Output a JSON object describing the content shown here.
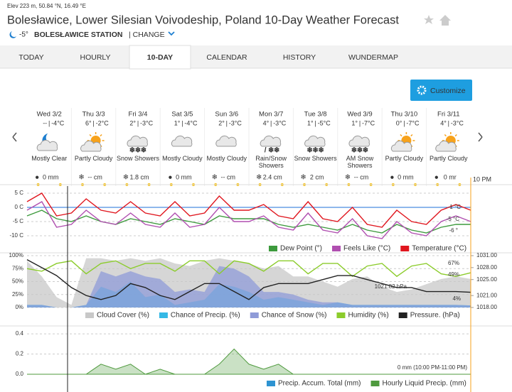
{
  "header": {
    "elev": "Elev 223 m, 50.84 °N, 16.49 °E",
    "title": "Bolesławice, Lower Silesian Voivodeship, Poland 10-Day Weather Forecast",
    "station_temp": "-5°",
    "station": "BOLESŁAWICE STATION",
    "change": "| CHANGE"
  },
  "tabs": {
    "items": [
      "TODAY",
      "HOURLY",
      "10-DAY",
      "CALENDAR",
      "HISTORY",
      "WUNDERMAP"
    ],
    "active": 2
  },
  "customize": "Customize",
  "days": [
    {
      "date": "Wed 3/2",
      "hi": "--",
      "lo": "-4°C",
      "icon": "moon",
      "condition": "Mostly Clear",
      "precip": "0 mm"
    },
    {
      "date": "Thu 3/3",
      "hi": "6°",
      "lo": "-2°C",
      "icon": "sun-cloud",
      "condition": "Partly Cloudy",
      "precip": "-- cm"
    },
    {
      "date": "Fri 3/4",
      "hi": "2°",
      "lo": "-3°C",
      "icon": "snow",
      "condition": "Snow Showers",
      "precip": "1.8 cm"
    },
    {
      "date": "Sat 3/5",
      "hi": "1°",
      "lo": "-4°C",
      "icon": "cloud",
      "condition": "Mostly Cloudy",
      "precip": "0 mm"
    },
    {
      "date": "Sun 3/6",
      "hi": "2°",
      "lo": "-3°C",
      "icon": "cloud",
      "condition": "Mostly Cloudy",
      "precip": "-- cm"
    },
    {
      "date": "Mon 3/7",
      "hi": "4°",
      "lo": "-3°C",
      "icon": "rain-snow",
      "condition": "Rain/Snow Showers",
      "precip": "2.4 cm"
    },
    {
      "date": "Tue 3/8",
      "hi": "1°",
      "lo": "-5°C",
      "icon": "snow",
      "condition": "Snow Showers",
      "precip": "2 cm"
    },
    {
      "date": "Wed 3/9",
      "hi": "1°",
      "lo": "-7°C",
      "icon": "snow",
      "condition": "AM Snow Showers",
      "precip": "-- cm"
    },
    {
      "date": "Thu 3/10",
      "hi": "0°",
      "lo": "-7°C",
      "icon": "sun-cloud",
      "condition": "Partly Cloudy",
      "precip": "0 mm"
    },
    {
      "date": "Fri 3/11",
      "hi": "4°",
      "lo": "-3°C",
      "icon": "sun-cloud",
      "condition": "Partly Cloudy",
      "precip": "0 mr"
    }
  ],
  "now_label": "10 PM",
  "chart_data": [
    {
      "type": "line",
      "ylim": [
        -12,
        7
      ],
      "yticks": [
        {
          "value": 5,
          "label": "5 C"
        },
        {
          "value": 0,
          "label": "0 C"
        },
        {
          "value": -5,
          "label": "-5 C"
        },
        {
          "value": -10,
          "label": "-10 C"
        }
      ],
      "series": [
        {
          "name": "Dew Point (°)",
          "color": "#3d9a3d",
          "kind": "line",
          "values": [
            -3,
            -1,
            -4,
            -5,
            -3,
            -5,
            -6,
            -4,
            -5,
            -6,
            -4,
            -5,
            -6,
            -3,
            -4,
            -4,
            -4,
            -6,
            -7,
            -6,
            -7,
            -8,
            -6,
            -8,
            -9,
            -6,
            -8,
            -9,
            -7,
            -6,
            -6
          ]
        },
        {
          "name": "Feels Like (°C)",
          "color": "#b04fb0",
          "kind": "line",
          "values": [
            -1,
            2,
            -7,
            -6,
            -1,
            -5,
            -6,
            -2,
            -6,
            -7,
            -2,
            -7,
            -6,
            0,
            -5,
            -5,
            -3,
            -7,
            -8,
            -2,
            -8,
            -9,
            -4,
            -10,
            -11,
            -5,
            -9,
            -10,
            -5,
            -3,
            -5
          ]
        },
        {
          "name": "Temperature (°C)",
          "color": "#e0161e",
          "kind": "line",
          "values": [
            2,
            5,
            -3,
            -2,
            3,
            -1,
            -2,
            2,
            -2,
            -3,
            2,
            -3,
            -2,
            4,
            -1,
            -1,
            1,
            -3,
            -4,
            2,
            -4,
            -5,
            0,
            -6,
            -7,
            -1,
            -5,
            -6,
            -1,
            1,
            -1
          ]
        }
      ],
      "annotations": [
        "-1 °C",
        "-5 °C",
        "-6 °"
      ]
    },
    {
      "type": "area",
      "ylim": [
        0,
        100
      ],
      "yticks": [
        {
          "value": 100,
          "label": "100%"
        },
        {
          "value": 75,
          "label": "75%"
        },
        {
          "value": 50,
          "label": "50%"
        },
        {
          "value": 25,
          "label": "25%"
        },
        {
          "value": 0,
          "label": "0%"
        }
      ],
      "y2lim": [
        1018,
        1031
      ],
      "y2ticks": [
        {
          "value": 1031,
          "label": "1031.00"
        },
        {
          "value": 1028,
          "label": "1028.00"
        },
        {
          "value": 1025,
          "label": "1025.00"
        },
        {
          "value": 1021,
          "label": "1021.00"
        },
        {
          "value": 1018,
          "label": "1018.00"
        }
      ],
      "series": [
        {
          "name": "Cloud Cover (%)",
          "color": "#c8c8c8",
          "kind": "area",
          "values": [
            90,
            60,
            20,
            5,
            95,
            95,
            90,
            95,
            90,
            95,
            85,
            80,
            90,
            95,
            90,
            85,
            75,
            80,
            60,
            60,
            50,
            40,
            55,
            60,
            40,
            30,
            35,
            45,
            55,
            60,
            55
          ]
        },
        {
          "name": "Chance of Precip. (%)",
          "color": "#35b9e6",
          "kind": "area",
          "values": [
            5,
            5,
            0,
            0,
            5,
            40,
            30,
            50,
            20,
            25,
            5,
            10,
            15,
            45,
            40,
            30,
            15,
            20,
            15,
            10,
            5,
            10,
            5,
            5,
            5,
            5,
            5,
            5,
            5,
            5,
            4
          ]
        },
        {
          "name": "Chance of Snow (%)",
          "color": "#8f9bd8",
          "kind": "area",
          "values": [
            5,
            5,
            0,
            0,
            5,
            70,
            60,
            70,
            60,
            55,
            30,
            35,
            30,
            80,
            75,
            60,
            30,
            30,
            25,
            15,
            10,
            10,
            5,
            5,
            5,
            5,
            5,
            5,
            5,
            5,
            4
          ]
        },
        {
          "name": "Humidity (%)",
          "color": "#8ccc2c",
          "kind": "line",
          "values": [
            75,
            70,
            85,
            90,
            65,
            85,
            90,
            75,
            85,
            85,
            70,
            90,
            90,
            65,
            90,
            85,
            70,
            90,
            90,
            65,
            85,
            85,
            60,
            80,
            85,
            60,
            80,
            85,
            65,
            60,
            67
          ]
        },
        {
          "name": "Pressure. (hPa)",
          "color": "#222222",
          "kind": "line",
          "axis": "y2",
          "values": [
            1030,
            1028,
            1026,
            1023,
            1021,
            1020,
            1021,
            1024,
            1023,
            1021,
            1020,
            1022,
            1024,
            1024,
            1022,
            1020,
            1023,
            1024,
            1024,
            1024,
            1025,
            1026,
            1026,
            1025,
            1024,
            1023,
            1023,
            1022,
            1022,
            1022,
            1021.82
          ]
        }
      ],
      "annotations": [
        "1021.82 hPa",
        "67%",
        "49%",
        "4%"
      ]
    },
    {
      "type": "area",
      "ylim": [
        0,
        0.45
      ],
      "yticks": [
        0.4,
        0.2,
        {
          "value": 0,
          "label": "0.0"
        }
      ],
      "series": [
        {
          "name": "Precip. Accum. Total (mm)",
          "color": "#2e93d1",
          "kind": "area",
          "values": [
            0,
            0,
            0,
            0,
            0,
            0,
            0,
            0,
            0,
            0,
            0,
            0,
            0,
            0,
            0,
            0,
            0,
            0,
            0,
            0,
            0,
            0,
            0,
            0,
            0,
            0,
            0,
            0,
            0,
            0,
            0
          ]
        },
        {
          "name": "Hourly Liquid Precip. (mm)",
          "color": "#4f9a3e",
          "kind": "area",
          "values": [
            0,
            0,
            0,
            0,
            0,
            0.1,
            0.05,
            0.1,
            0,
            0.05,
            0,
            0,
            0,
            0.1,
            0.25,
            0.1,
            0.05,
            0.1,
            0,
            0,
            0,
            0,
            0,
            0,
            0,
            0,
            0,
            0,
            0,
            0,
            0
          ]
        }
      ],
      "annotations": [
        "0 mm (10:00 PM-11:00 PM)"
      ]
    }
  ]
}
